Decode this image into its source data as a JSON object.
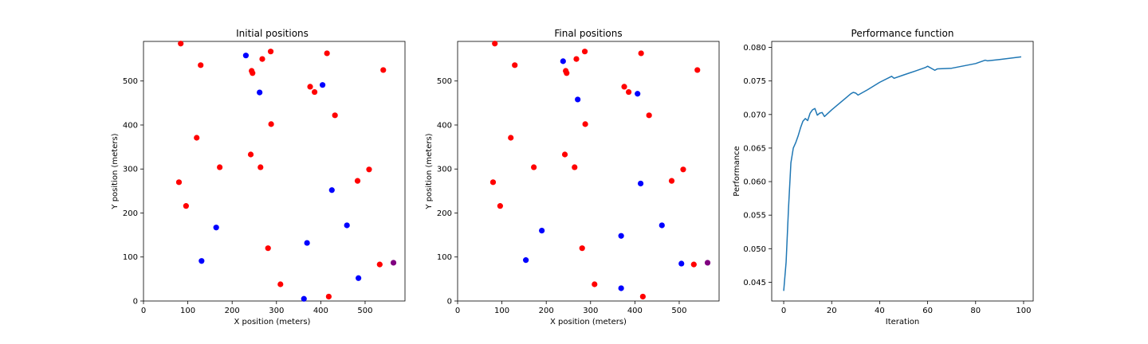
{
  "chart_data": [
    {
      "type": "scatter",
      "title": "Initial positions",
      "xlabel": "X position (meters)",
      "ylabel": "Y position (meters)",
      "xlim": [
        0,
        590
      ],
      "ylim": [
        0,
        590
      ],
      "xticks": [
        0,
        100,
        200,
        300,
        400,
        500
      ],
      "yticks": [
        0,
        100,
        200,
        300,
        400,
        500
      ],
      "grid": false,
      "colors": {
        "red": "#ff0000",
        "blue": "#0000ff",
        "purple": "#800080"
      },
      "points": [
        {
          "x": 84,
          "y": 585,
          "c": "red"
        },
        {
          "x": 129,
          "y": 536,
          "c": "red"
        },
        {
          "x": 231,
          "y": 558,
          "c": "blue"
        },
        {
          "x": 287,
          "y": 567,
          "c": "red"
        },
        {
          "x": 268,
          "y": 550,
          "c": "red"
        },
        {
          "x": 244,
          "y": 523,
          "c": "red"
        },
        {
          "x": 246,
          "y": 518,
          "c": "red"
        },
        {
          "x": 262,
          "y": 474,
          "c": "blue"
        },
        {
          "x": 414,
          "y": 563,
          "c": "red"
        },
        {
          "x": 541,
          "y": 525,
          "c": "red"
        },
        {
          "x": 404,
          "y": 491,
          "c": "blue"
        },
        {
          "x": 376,
          "y": 487,
          "c": "red"
        },
        {
          "x": 386,
          "y": 475,
          "c": "red"
        },
        {
          "x": 432,
          "y": 422,
          "c": "red"
        },
        {
          "x": 288,
          "y": 402,
          "c": "red"
        },
        {
          "x": 120,
          "y": 371,
          "c": "red"
        },
        {
          "x": 242,
          "y": 333,
          "c": "red"
        },
        {
          "x": 172,
          "y": 304,
          "c": "red"
        },
        {
          "x": 264,
          "y": 304,
          "c": "red"
        },
        {
          "x": 509,
          "y": 299,
          "c": "red"
        },
        {
          "x": 80,
          "y": 270,
          "c": "red"
        },
        {
          "x": 483,
          "y": 273,
          "c": "red"
        },
        {
          "x": 425,
          "y": 252,
          "c": "blue"
        },
        {
          "x": 96,
          "y": 216,
          "c": "red"
        },
        {
          "x": 164,
          "y": 167,
          "c": "blue"
        },
        {
          "x": 459,
          "y": 172,
          "c": "blue"
        },
        {
          "x": 369,
          "y": 132,
          "c": "blue"
        },
        {
          "x": 281,
          "y": 120,
          "c": "red"
        },
        {
          "x": 131,
          "y": 91,
          "c": "blue"
        },
        {
          "x": 533,
          "y": 83,
          "c": "red"
        },
        {
          "x": 564,
          "y": 87,
          "c": "purple"
        },
        {
          "x": 309,
          "y": 38,
          "c": "red"
        },
        {
          "x": 485,
          "y": 52,
          "c": "blue"
        },
        {
          "x": 362,
          "y": 5,
          "c": "blue"
        },
        {
          "x": 418,
          "y": 10,
          "c": "red"
        }
      ]
    },
    {
      "type": "scatter",
      "title": "Final positions",
      "xlabel": "X position (meters)",
      "ylabel": "Y position (meters)",
      "xlim": [
        0,
        590
      ],
      "ylim": [
        0,
        590
      ],
      "xticks": [
        0,
        100,
        200,
        300,
        400,
        500
      ],
      "yticks": [
        0,
        100,
        200,
        300,
        400,
        500
      ],
      "grid": false,
      "colors": {
        "red": "#ff0000",
        "blue": "#0000ff",
        "purple": "#800080"
      },
      "points": [
        {
          "x": 84,
          "y": 585,
          "c": "red"
        },
        {
          "x": 129,
          "y": 536,
          "c": "red"
        },
        {
          "x": 238,
          "y": 545,
          "c": "blue"
        },
        {
          "x": 287,
          "y": 567,
          "c": "red"
        },
        {
          "x": 268,
          "y": 550,
          "c": "red"
        },
        {
          "x": 244,
          "y": 523,
          "c": "red"
        },
        {
          "x": 246,
          "y": 518,
          "c": "red"
        },
        {
          "x": 271,
          "y": 458,
          "c": "blue"
        },
        {
          "x": 414,
          "y": 563,
          "c": "red"
        },
        {
          "x": 541,
          "y": 525,
          "c": "red"
        },
        {
          "x": 406,
          "y": 471,
          "c": "blue"
        },
        {
          "x": 376,
          "y": 487,
          "c": "red"
        },
        {
          "x": 386,
          "y": 475,
          "c": "red"
        },
        {
          "x": 432,
          "y": 422,
          "c": "red"
        },
        {
          "x": 288,
          "y": 402,
          "c": "red"
        },
        {
          "x": 120,
          "y": 371,
          "c": "red"
        },
        {
          "x": 242,
          "y": 333,
          "c": "red"
        },
        {
          "x": 172,
          "y": 304,
          "c": "red"
        },
        {
          "x": 264,
          "y": 304,
          "c": "red"
        },
        {
          "x": 509,
          "y": 299,
          "c": "red"
        },
        {
          "x": 80,
          "y": 270,
          "c": "red"
        },
        {
          "x": 483,
          "y": 273,
          "c": "red"
        },
        {
          "x": 413,
          "y": 267,
          "c": "blue"
        },
        {
          "x": 96,
          "y": 216,
          "c": "red"
        },
        {
          "x": 190,
          "y": 160,
          "c": "blue"
        },
        {
          "x": 461,
          "y": 172,
          "c": "blue"
        },
        {
          "x": 369,
          "y": 148,
          "c": "blue"
        },
        {
          "x": 281,
          "y": 120,
          "c": "red"
        },
        {
          "x": 154,
          "y": 93,
          "c": "blue"
        },
        {
          "x": 533,
          "y": 83,
          "c": "red"
        },
        {
          "x": 564,
          "y": 87,
          "c": "purple"
        },
        {
          "x": 309,
          "y": 38,
          "c": "red"
        },
        {
          "x": 505,
          "y": 85,
          "c": "blue"
        },
        {
          "x": 369,
          "y": 29,
          "c": "blue"
        },
        {
          "x": 418,
          "y": 10,
          "c": "red"
        }
      ]
    },
    {
      "type": "line",
      "title": "Performance function",
      "xlabel": "Iteration",
      "ylabel": "Performance",
      "xlim": [
        -5,
        104
      ],
      "ylim": [
        0.0422,
        0.0809
      ],
      "xticks": [
        0,
        20,
        40,
        60,
        80,
        100
      ],
      "xtick_labels": [
        "0",
        "20",
        "40",
        "60",
        "80",
        "100"
      ],
      "yticks": [
        0.045,
        0.05,
        0.055,
        0.06,
        0.065,
        0.07,
        0.075,
        0.08
      ],
      "ytick_labels": [
        "0.045",
        "0.050",
        "0.055",
        "0.060",
        "0.065",
        "0.070",
        "0.075",
        "0.080"
      ],
      "grid": false,
      "colors": {
        "line": "#1f77b4"
      },
      "series": [
        {
          "x": [
            0,
            1,
            2,
            3,
            4,
            5,
            6,
            7,
            8,
            9,
            10,
            11,
            12,
            13,
            14,
            15,
            16,
            17,
            20,
            25,
            28,
            29,
            30,
            31,
            35,
            40,
            45,
            46,
            50,
            55,
            59,
            60,
            63,
            64,
            70,
            80,
            84,
            85,
            90,
            99
          ],
          "y": [
            0.0437,
            0.048,
            0.056,
            0.0628,
            0.065,
            0.0658,
            0.0668,
            0.068,
            0.069,
            0.0694,
            0.0691,
            0.0702,
            0.0707,
            0.0709,
            0.0699,
            0.0702,
            0.0703,
            0.0697,
            0.0707,
            0.0722,
            0.0731,
            0.0733,
            0.0732,
            0.0729,
            0.0737,
            0.0748,
            0.0757,
            0.0754,
            0.0759,
            0.0765,
            0.077,
            0.0772,
            0.0766,
            0.0768,
            0.0769,
            0.0776,
            0.0781,
            0.078,
            0.0782,
            0.0786
          ]
        }
      ]
    }
  ]
}
